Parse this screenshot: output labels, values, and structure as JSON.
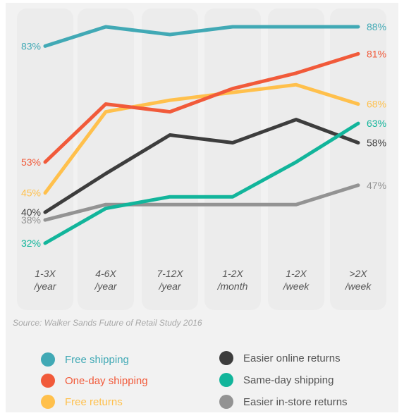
{
  "chart_data": {
    "type": "line",
    "categories": [
      "1-3X\n/year",
      "4-6X\n/year",
      "7-12X\n/year",
      "1-2X\n/month",
      "1-2X\n/week",
      ">2X\n/week"
    ],
    "ylim": [
      25,
      95
    ],
    "grid": false,
    "legend_position": "bottom",
    "source": "Source: Walker Sands Future of Retail Study 2016",
    "series": [
      {
        "name": "Free shipping",
        "color": "#41a9b5",
        "values": [
          83,
          88,
          86,
          88,
          88,
          88
        ],
        "start_label": "83%",
        "end_label": "88%"
      },
      {
        "name": "One-day shipping",
        "color": "#f15a3a",
        "values": [
          53,
          68,
          66,
          72,
          76,
          81
        ],
        "start_label": "53%",
        "end_label": "81%"
      },
      {
        "name": "Free returns",
        "color": "#ffc04c",
        "values": [
          45,
          66,
          69,
          71,
          73,
          68
        ],
        "start_label": "45%",
        "end_label": "68%"
      },
      {
        "name": "Easier online returns",
        "color": "#3d3d3d",
        "values": [
          40,
          50,
          60,
          58,
          64,
          58
        ],
        "start_label": "40%",
        "end_label": "58%"
      },
      {
        "name": "Same-day shipping",
        "color": "#12b59b",
        "values": [
          32,
          41,
          44,
          44,
          53,
          63
        ],
        "start_label": "32%",
        "end_label": "63%"
      },
      {
        "name": "Easier in-store returns",
        "color": "#939393",
        "values": [
          38,
          42,
          42,
          42,
          42,
          47
        ],
        "start_label": "38%",
        "end_label": "47%"
      }
    ]
  },
  "legend": [
    {
      "label": "Free shipping",
      "color": "#41a9b5"
    },
    {
      "label": "One-day shipping",
      "color": "#f15a3a"
    },
    {
      "label": "Free returns",
      "color": "#ffc04c"
    },
    {
      "label": "Easier online returns",
      "color": "#3d3d3d"
    },
    {
      "label": "Same-day shipping",
      "color": "#12b59b"
    },
    {
      "label": "Easier in-store returns",
      "color": "#939393"
    }
  ]
}
